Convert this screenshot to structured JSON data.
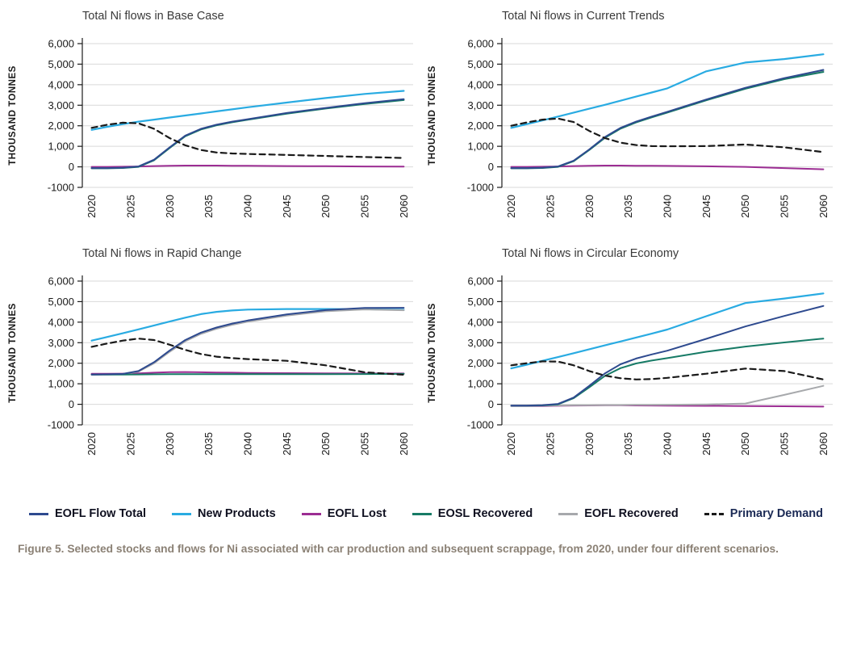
{
  "colors": {
    "eofl_flow_total": "#2e4a8f",
    "new_products": "#29abe2",
    "eofl_lost": "#9c2d93",
    "eosl_recovered": "#177b66",
    "eofl_recovered": "#a7a9ac",
    "primary_demand": "#1a1a1a",
    "axis": "#1a1a1a",
    "grid": "#d9d9d9",
    "caption": "#8b8175"
  },
  "axis": {
    "ylabel": "THOUSAND TONNES",
    "ylim": [
      -1000,
      6000
    ],
    "xlim": [
      2018.8,
      2061.2
    ],
    "yticks": [
      6000,
      5000,
      4000,
      3000,
      2000,
      1000,
      0,
      -1000
    ],
    "ytick_labels": [
      "6,000",
      "5,000",
      "4,000",
      "3,000",
      "2,000",
      "1,000",
      "0",
      "-1000"
    ],
    "xticks": [
      2020,
      2025,
      2030,
      2035,
      2040,
      2045,
      2050,
      2055,
      2060
    ]
  },
  "legend": [
    {
      "label": "EOFL Flow Total",
      "color_key": "eofl_flow_total",
      "style": "solid"
    },
    {
      "label": "New Products",
      "color_key": "new_products",
      "style": "solid"
    },
    {
      "label": "EOFL Lost",
      "color_key": "eofl_lost",
      "style": "solid"
    },
    {
      "label": "EOSL Recovered",
      "color_key": "eosl_recovered",
      "style": "solid"
    },
    {
      "label": "EOFL Recovered",
      "color_key": "eofl_recovered",
      "style": "solid"
    },
    {
      "label": "Primary Demand",
      "color_key": "primary_demand",
      "style": "dashed"
    }
  ],
  "caption": "Figure 5. Selected stocks and flows for Ni associated with car production and subsequent scrappage, from 2020, under four different scenarios.",
  "chart_data": [
    {
      "type": "line",
      "title": "Total Ni flows in Base Case",
      "ylabel": "THOUSAND TONNES",
      "ylim": [
        -1000,
        6000
      ],
      "x": [
        2020,
        2022,
        2024,
        2026,
        2028,
        2030,
        2032,
        2034,
        2036,
        2038,
        2040,
        2045,
        2050,
        2055,
        2060
      ],
      "series": [
        {
          "name": "New Products",
          "color_key": "new_products",
          "dash": false,
          "values": [
            1800,
            1950,
            2080,
            2200,
            2300,
            2400,
            2500,
            2600,
            2700,
            2800,
            2900,
            3130,
            3350,
            3550,
            3700
          ]
        },
        {
          "name": "EOFL Lost",
          "color_key": "eofl_lost",
          "dash": false,
          "values": [
            0,
            0,
            5,
            20,
            40,
            55,
            60,
            60,
            60,
            55,
            50,
            40,
            30,
            20,
            10
          ]
        },
        {
          "name": "EOFL Recovered",
          "color_key": "eofl_recovered",
          "dash": false,
          "values": [
            -65,
            -65,
            -50,
            10,
            335,
            935,
            1505,
            1835,
            2035,
            2185,
            2305,
            2605,
            2855,
            3080,
            3270
          ]
        },
        {
          "name": "EOSL Recovered",
          "color_key": "eosl_recovered",
          "dash": false,
          "values": [
            -70,
            -70,
            -55,
            0,
            320,
            920,
            1490,
            1820,
            2020,
            2170,
            2290,
            2590,
            2840,
            3060,
            3250
          ]
        },
        {
          "name": "EOFL Flow Total",
          "color_key": "eofl_flow_total",
          "dash": false,
          "values": [
            -60,
            -60,
            -40,
            20,
            350,
            950,
            1520,
            1850,
            2050,
            2200,
            2320,
            2620,
            2870,
            3100,
            3300
          ]
        },
        {
          "name": "Primary Demand",
          "color_key": "primary_demand",
          "dash": true,
          "values": [
            1900,
            2050,
            2150,
            2120,
            1850,
            1400,
            1050,
            820,
            700,
            650,
            630,
            580,
            530,
            480,
            430
          ]
        }
      ]
    },
    {
      "type": "line",
      "title": "Total Ni flows in  Current Trends",
      "ylabel": "THOUSAND TONNES",
      "ylim": [
        -1000,
        6000
      ],
      "x": [
        2020,
        2022,
        2024,
        2026,
        2028,
        2030,
        2032,
        2034,
        2036,
        2038,
        2040,
        2045,
        2050,
        2055,
        2060
      ],
      "series": [
        {
          "name": "New Products",
          "color_key": "new_products",
          "dash": false,
          "values": [
            1900,
            2080,
            2260,
            2450,
            2640,
            2830,
            3020,
            3220,
            3420,
            3620,
            3820,
            4650,
            5080,
            5250,
            5480
          ]
        },
        {
          "name": "EOFL Lost",
          "color_key": "eofl_lost",
          "dash": false,
          "values": [
            0,
            0,
            5,
            20,
            40,
            55,
            60,
            60,
            55,
            50,
            45,
            25,
            0,
            -60,
            -120
          ]
        },
        {
          "name": "EOFL Recovered",
          "color_key": "eofl_recovered",
          "dash": false,
          "values": [
            -65,
            -65,
            -50,
            10,
            290,
            835,
            1430,
            1880,
            2180,
            2430,
            2660,
            3260,
            3825,
            4295,
            4670
          ]
        },
        {
          "name": "EOSL Recovered",
          "color_key": "eosl_recovered",
          "dash": false,
          "values": [
            -70,
            -70,
            -55,
            0,
            280,
            820,
            1410,
            1860,
            2160,
            2410,
            2640,
            3240,
            3800,
            4270,
            4620
          ]
        },
        {
          "name": "EOFL Flow Total",
          "color_key": "eofl_flow_total",
          "dash": false,
          "values": [
            -60,
            -60,
            -40,
            20,
            300,
            850,
            1450,
            1900,
            2200,
            2450,
            2680,
            3280,
            3850,
            4320,
            4720
          ]
        },
        {
          "name": "Primary Demand",
          "color_key": "primary_demand",
          "dash": true,
          "values": [
            2000,
            2160,
            2300,
            2350,
            2180,
            1750,
            1400,
            1180,
            1060,
            1010,
            1000,
            1010,
            1090,
            950,
            720
          ]
        }
      ]
    },
    {
      "type": "line",
      "title": "Total Ni flows in Rapid Change",
      "ylabel": "THOUSAND TONNES",
      "ylim": [
        -1000,
        6000
      ],
      "x": [
        2020,
        2022,
        2024,
        2026,
        2028,
        2030,
        2032,
        2034,
        2036,
        2038,
        2040,
        2045,
        2050,
        2055,
        2060
      ],
      "series": [
        {
          "name": "New Products",
          "color_key": "new_products",
          "dash": false,
          "values": [
            3100,
            3280,
            3460,
            3650,
            3840,
            4030,
            4220,
            4390,
            4500,
            4570,
            4610,
            4640,
            4640,
            4630,
            4600
          ]
        },
        {
          "name": "EOFL Lost",
          "color_key": "eofl_lost",
          "dash": false,
          "values": [
            1490,
            1490,
            1495,
            1510,
            1540,
            1565,
            1570,
            1560,
            1550,
            1540,
            1530,
            1515,
            1505,
            1500,
            1500
          ]
        },
        {
          "name": "EOFL Recovered",
          "color_key": "eofl_recovered",
          "dash": false,
          "values": [
            1440,
            1450,
            1470,
            1590,
            2000,
            2560,
            3070,
            3430,
            3680,
            3870,
            4020,
            4320,
            4530,
            4620,
            4580
          ]
        },
        {
          "name": "EOSL Recovered",
          "color_key": "eosl_recovered",
          "dash": false,
          "values": [
            1450,
            1450,
            1450,
            1455,
            1460,
            1465,
            1470,
            1470,
            1470,
            1470,
            1470,
            1470,
            1470,
            1475,
            1480
          ]
        },
        {
          "name": "EOFL Flow Total",
          "color_key": "eofl_flow_total",
          "dash": false,
          "values": [
            1450,
            1460,
            1480,
            1620,
            2050,
            2620,
            3130,
            3490,
            3740,
            3930,
            4080,
            4380,
            4590,
            4690,
            4700
          ]
        },
        {
          "name": "Primary Demand",
          "color_key": "primary_demand",
          "dash": true,
          "values": [
            2800,
            2960,
            3100,
            3200,
            3130,
            2900,
            2650,
            2450,
            2320,
            2250,
            2200,
            2120,
            1900,
            1560,
            1440
          ]
        }
      ]
    },
    {
      "type": "line",
      "title": "Total Ni flows in Circular Economy",
      "ylabel": "THOUSAND TONNES",
      "ylim": [
        -1000,
        6000
      ],
      "x": [
        2020,
        2022,
        2024,
        2026,
        2028,
        2030,
        2032,
        2034,
        2036,
        2038,
        2040,
        2045,
        2050,
        2055,
        2060
      ],
      "series": [
        {
          "name": "New Products",
          "color_key": "new_products",
          "dash": false,
          "values": [
            1750,
            1930,
            2120,
            2300,
            2490,
            2680,
            2870,
            3060,
            3250,
            3440,
            3640,
            4290,
            4930,
            5150,
            5400
          ]
        },
        {
          "name": "EOFL Lost",
          "color_key": "eofl_lost",
          "dash": false,
          "values": [
            -80,
            -80,
            -80,
            -70,
            -60,
            -55,
            -50,
            -50,
            -55,
            -60,
            -65,
            -75,
            -85,
            -95,
            -110
          ]
        },
        {
          "name": "EOFL Recovered",
          "color_key": "eofl_recovered",
          "dash": false,
          "values": [
            -65,
            -65,
            -60,
            -55,
            -50,
            -45,
            -40,
            -35,
            -30,
            -25,
            -20,
            -10,
            40,
            460,
            900
          ]
        },
        {
          "name": "EOSL Recovered",
          "color_key": "eosl_recovered",
          "dash": false,
          "values": [
            -70,
            -70,
            -55,
            0,
            300,
            830,
            1380,
            1760,
            1990,
            2130,
            2250,
            2560,
            2810,
            3010,
            3200
          ]
        },
        {
          "name": "EOFL Flow Total",
          "color_key": "eofl_flow_total",
          "dash": false,
          "values": [
            -60,
            -60,
            -40,
            20,
            330,
            900,
            1500,
            1950,
            2230,
            2430,
            2610,
            3190,
            3790,
            4300,
            4790
          ]
        },
        {
          "name": "Primary Demand",
          "color_key": "primary_demand",
          "dash": true,
          "values": [
            1900,
            2000,
            2090,
            2080,
            1900,
            1620,
            1400,
            1270,
            1210,
            1230,
            1290,
            1490,
            1740,
            1620,
            1210
          ]
        }
      ]
    }
  ]
}
